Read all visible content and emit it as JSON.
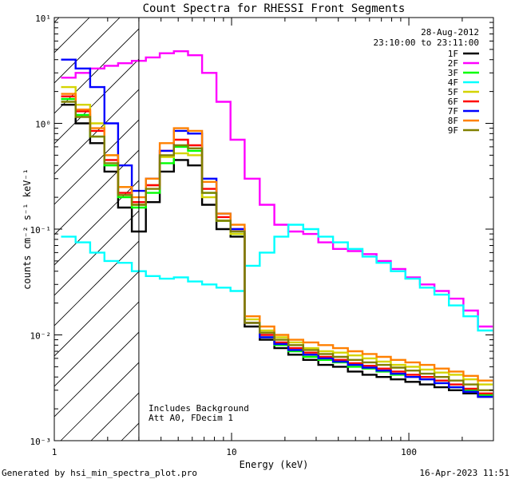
{
  "chart_data": {
    "type": "line",
    "title": "Count Spectra for RHESSI Front Segments",
    "xlabel": "Energy (keV)",
    "ylabel": "counts cm⁻² s⁻¹ keV⁻¹",
    "xscale": "log",
    "yscale": "log",
    "xlim": [
      1,
      300
    ],
    "ylim": [
      0.001,
      10
    ],
    "x_tick_labels": [
      "1",
      "10",
      "100"
    ],
    "y_tick_labels": [
      "10⁻³",
      "10⁻²",
      "10⁻¹",
      "10⁰",
      "10¹"
    ],
    "date": "28-Aug-2012",
    "time_range": "23:10:00 to 23:11:00",
    "notes": [
      "Includes Background",
      "Att A0, FDecim 1"
    ],
    "footer_left": "Generated by hsi_min_spectra_plot.pro",
    "footer_right": "16-Apr-2023 11:51",
    "excluded_region": [
      1,
      3
    ],
    "energy": [
      1.2,
      1.45,
      1.75,
      2.1,
      2.5,
      3.0,
      3.6,
      4.3,
      5.2,
      6.2,
      7.5,
      9.0,
      10.8,
      13,
      16,
      19,
      23,
      28,
      34,
      41,
      50,
      60,
      72,
      87,
      105,
      127,
      153,
      185,
      223,
      270
    ],
    "series": [
      {
        "name": "1F",
        "color": "#000000",
        "values": [
          1.5,
          1.0,
          0.65,
          0.35,
          0.16,
          0.095,
          0.18,
          0.35,
          0.45,
          0.4,
          0.17,
          0.1,
          0.085,
          0.012,
          0.009,
          0.0075,
          0.0065,
          0.0058,
          0.0052,
          0.005,
          0.0045,
          0.0042,
          0.004,
          0.0038,
          0.0036,
          0.0034,
          0.0032,
          0.003,
          0.0028,
          0.0026
        ]
      },
      {
        "name": "2F",
        "color": "#ff00ff",
        "values": [
          2.7,
          3.0,
          3.3,
          3.5,
          3.7,
          3.9,
          4.2,
          4.6,
          4.8,
          4.4,
          3.0,
          1.6,
          0.7,
          0.3,
          0.17,
          0.11,
          0.095,
          0.09,
          0.075,
          0.065,
          0.062,
          0.058,
          0.05,
          0.042,
          0.035,
          0.03,
          0.026,
          0.022,
          0.017,
          0.012
        ]
      },
      {
        "name": "3F",
        "color": "#00ff00",
        "values": [
          1.7,
          1.2,
          0.75,
          0.4,
          0.2,
          0.16,
          0.22,
          0.42,
          0.6,
          0.55,
          0.22,
          0.12,
          0.09,
          0.013,
          0.0095,
          0.008,
          0.007,
          0.0062,
          0.0058,
          0.0055,
          0.005,
          0.0048,
          0.0045,
          0.0042,
          0.004,
          0.0038,
          0.0035,
          0.0032,
          0.003,
          0.0027
        ]
      },
      {
        "name": "4F",
        "color": "#00ffff",
        "values": [
          0.085,
          0.075,
          0.06,
          0.05,
          0.048,
          0.04,
          0.036,
          0.034,
          0.035,
          0.032,
          0.03,
          0.028,
          0.026,
          0.045,
          0.06,
          0.085,
          0.11,
          0.1,
          0.085,
          0.075,
          0.065,
          0.055,
          0.048,
          0.04,
          0.034,
          0.028,
          0.024,
          0.019,
          0.015,
          0.011
        ]
      },
      {
        "name": "5F",
        "color": "#d4d400",
        "values": [
          2.2,
          1.5,
          1.0,
          0.5,
          0.25,
          0.17,
          0.26,
          0.48,
          0.52,
          0.5,
          0.2,
          0.12,
          0.09,
          0.014,
          0.011,
          0.0095,
          0.0085,
          0.0075,
          0.007,
          0.0068,
          0.0064,
          0.006,
          0.0056,
          0.0052,
          0.005,
          0.0047,
          0.0044,
          0.0042,
          0.0038,
          0.0034
        ]
      },
      {
        "name": "6F",
        "color": "#ff0000",
        "values": [
          1.8,
          1.3,
          0.85,
          0.45,
          0.22,
          0.18,
          0.26,
          0.55,
          0.7,
          0.62,
          0.24,
          0.13,
          0.1,
          0.013,
          0.01,
          0.0085,
          0.0075,
          0.0068,
          0.0062,
          0.0058,
          0.0054,
          0.0051,
          0.0048,
          0.0045,
          0.0042,
          0.004,
          0.0037,
          0.0034,
          0.0031,
          0.0028
        ]
      },
      {
        "name": "7F",
        "color": "#0000ff",
        "values": [
          4.0,
          3.3,
          2.2,
          1.0,
          0.4,
          0.23,
          0.3,
          0.55,
          0.85,
          0.8,
          0.3,
          0.14,
          0.1,
          0.013,
          0.0095,
          0.0082,
          0.0072,
          0.0065,
          0.006,
          0.0056,
          0.0052,
          0.0049,
          0.0046,
          0.0043,
          0.004,
          0.0038,
          0.0035,
          0.0032,
          0.0029,
          0.0026
        ]
      },
      {
        "name": "8F",
        "color": "#ff8000",
        "values": [
          1.9,
          1.35,
          0.9,
          0.5,
          0.25,
          0.2,
          0.3,
          0.65,
          0.9,
          0.85,
          0.28,
          0.14,
          0.11,
          0.015,
          0.012,
          0.01,
          0.009,
          0.0085,
          0.008,
          0.0075,
          0.007,
          0.0066,
          0.0062,
          0.0058,
          0.0055,
          0.0052,
          0.0048,
          0.0045,
          0.0041,
          0.0037
        ]
      },
      {
        "name": "9F",
        "color": "#808000",
        "values": [
          1.6,
          1.15,
          0.75,
          0.42,
          0.21,
          0.17,
          0.24,
          0.5,
          0.62,
          0.58,
          0.22,
          0.12,
          0.095,
          0.013,
          0.0105,
          0.009,
          0.008,
          0.0072,
          0.0066,
          0.0062,
          0.0058,
          0.0055,
          0.0052,
          0.0049,
          0.0046,
          0.0043,
          0.004,
          0.0037,
          0.0034,
          0.003
        ]
      }
    ]
  }
}
